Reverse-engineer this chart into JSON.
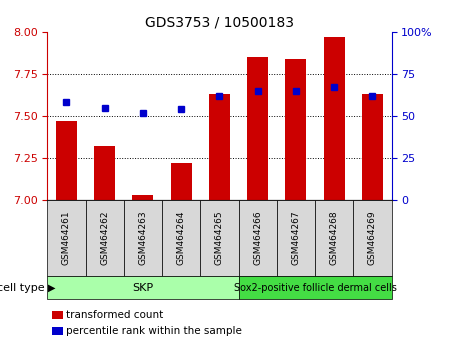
{
  "title": "GDS3753 / 10500183",
  "samples": [
    "GSM464261",
    "GSM464262",
    "GSM464263",
    "GSM464264",
    "GSM464265",
    "GSM464266",
    "GSM464267",
    "GSM464268",
    "GSM464269"
  ],
  "red_values": [
    7.47,
    7.32,
    7.03,
    7.22,
    7.63,
    7.85,
    7.84,
    7.97,
    7.63
  ],
  "blue_values": [
    58,
    55,
    52,
    54,
    62,
    65,
    65,
    67,
    62
  ],
  "ylim_left": [
    7.0,
    8.0
  ],
  "ylim_right": [
    0,
    100
  ],
  "yticks_left": [
    7.0,
    7.25,
    7.5,
    7.75,
    8.0
  ],
  "yticks_right": [
    0,
    25,
    50,
    75,
    100
  ],
  "grid_values": [
    7.25,
    7.5,
    7.75
  ],
  "red_color": "#cc0000",
  "blue_color": "#0000cc",
  "bar_width": 0.55,
  "skp_color": "#aaffaa",
  "sox_color": "#44dd44",
  "legend_red": "transformed count",
  "legend_blue": "percentile rank within the sample",
  "cell_type_label": "cell type",
  "sample_bg_color": "#d8d8d8",
  "tick_label_size": 6.5,
  "blue_marker_size": 5,
  "title_fontsize": 10
}
